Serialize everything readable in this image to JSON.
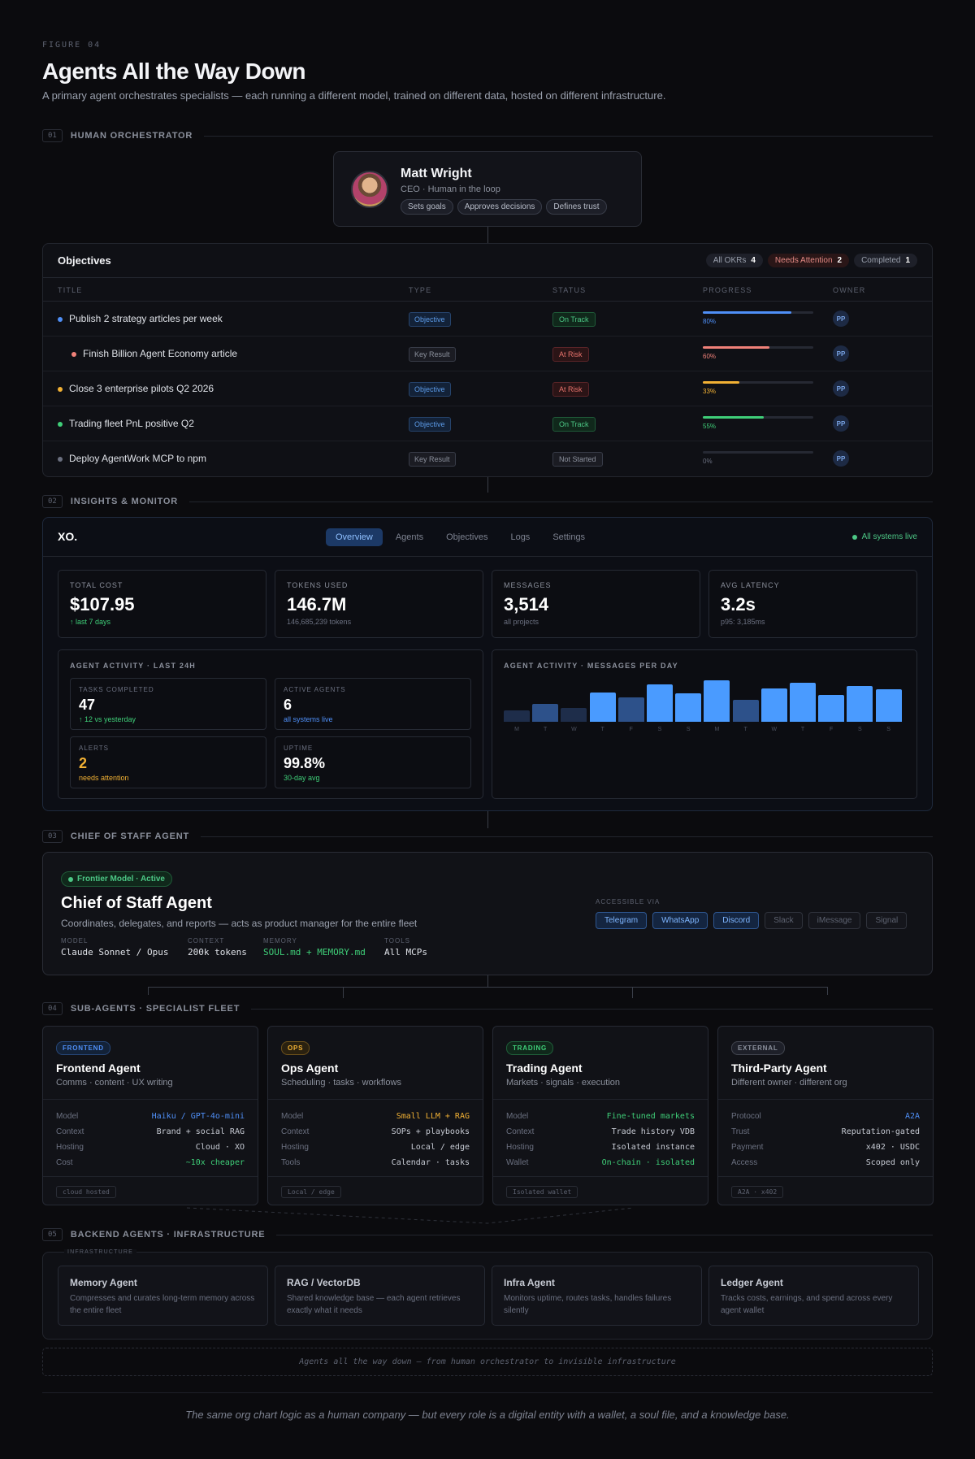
{
  "figure_label": "FIGURE 04",
  "title": "Agents All the Way Down",
  "subtitle": "A primary agent orchestrates specialists — each running a different model, trained on different data, hosted on different infrastructure.",
  "sections": {
    "s1": {
      "num": "01",
      "title": "HUMAN ORCHESTRATOR"
    },
    "s2": {
      "num": "02",
      "title": "INSIGHTS & MONITOR"
    },
    "s3": {
      "num": "03",
      "title": "CHIEF OF STAFF AGENT"
    },
    "s4": {
      "num": "04",
      "title": "SUB-AGENTS · SPECIALIST FLEET"
    },
    "s5": {
      "num": "05",
      "title": "BACKEND AGENTS · INFRASTRUCTURE"
    }
  },
  "ceo": {
    "name": "Matt Wright",
    "role": "CEO · Human in the loop",
    "tags": [
      "Sets goals",
      "Approves decisions",
      "Defines trust"
    ]
  },
  "objectives": {
    "title": "Objectives",
    "filters": [
      {
        "label": "All OKRs",
        "count": "4"
      },
      {
        "label": "Needs Attention",
        "count": "2"
      },
      {
        "label": "Completed",
        "count": "1"
      }
    ],
    "headers": {
      "title": "TITLE",
      "type": "TYPE",
      "status": "STATUS",
      "progress": "PROGRESS",
      "owner": "OWNER"
    },
    "rows": [
      {
        "title": "Publish 2 strategy articles per week",
        "type": "Objective",
        "status": "On Track",
        "progress": 0.8,
        "progress_label": "80%",
        "owner": "PP",
        "color": "#4f8ff7"
      },
      {
        "title": "Finish Billion Agent Economy article",
        "type": "Key Result",
        "status": "At Risk",
        "progress": 0.6,
        "progress_label": "60%",
        "owner": "PP",
        "color": "#f08179"
      },
      {
        "title": "Close 3 enterprise pilots Q2 2026",
        "type": "Objective",
        "status": "At Risk",
        "progress": 0.33,
        "progress_label": "33%",
        "owner": "PP",
        "color": "#f2b134"
      },
      {
        "title": "Trading fleet PnL positive Q2",
        "type": "Objective",
        "status": "On Track",
        "progress": 0.55,
        "progress_label": "55%",
        "owner": "PP",
        "color": "#3fce78"
      },
      {
        "title": "Deploy AgentWork MCP to npm",
        "type": "Key Result",
        "status": "Not Started",
        "progress": 0,
        "progress_label": "0%",
        "owner": "PP",
        "color": "#6b7080"
      }
    ]
  },
  "dashboard": {
    "logo": "XO.",
    "tabs": [
      "Overview",
      "Agents",
      "Objectives",
      "Logs",
      "Settings"
    ],
    "status": "All systems live",
    "kpis": [
      {
        "label": "TOTAL COST",
        "value": "$107.95",
        "sub": "↑ last 7 days",
        "sub_color": "#3fce78"
      },
      {
        "label": "TOKENS USED",
        "value": "146.7M",
        "sub": "146,685,239 tokens",
        "sub_color": "#6b7080"
      },
      {
        "label": "MESSAGES",
        "value": "3,514",
        "sub": "all projects",
        "sub_color": "#6b7080"
      },
      {
        "label": "AVG LATENCY",
        "value": "3.2s",
        "sub": "p95: 3,185ms",
        "sub_color": "#6b7080"
      }
    ],
    "activity": {
      "title": "AGENT ACTIVITY · LAST 24H",
      "cards": [
        {
          "label": "TASKS COMPLETED",
          "value": "47",
          "sub": "↑ 12 vs yesterday",
          "value_color": "#ffffff",
          "sub_color": "#3fce78"
        },
        {
          "label": "ACTIVE AGENTS",
          "value": "6",
          "sub": "all systems live",
          "value_color": "#ffffff",
          "sub_color": "#4f8ff7"
        },
        {
          "label": "ALERTS",
          "value": "2",
          "sub": "needs attention",
          "value_color": "#f2b134",
          "sub_color": "#f2b134"
        },
        {
          "label": "UPTIME",
          "value": "99.8%",
          "sub": "30-day avg",
          "value_color": "#ffffff",
          "sub_color": "#3fce78"
        }
      ]
    },
    "messages_chart": {
      "title": "AGENT ACTIVITY · MESSAGES PER DAY"
    }
  },
  "chart_data": {
    "type": "bar",
    "title": "AGENT ACTIVITY · MESSAGES PER DAY",
    "categories": [
      "M",
      "T",
      "W",
      "T",
      "F",
      "S",
      "S",
      "M",
      "T",
      "W",
      "T",
      "F",
      "S",
      "S"
    ],
    "values": [
      28,
      45,
      35,
      74,
      61,
      94,
      71,
      104,
      55,
      84,
      97,
      68,
      89,
      81
    ],
    "colors": [
      "#1e2d4a",
      "#2d518a",
      "#1e2d4a",
      "#4a9bff",
      "#2d518a",
      "#4a9bff",
      "#4a9bff",
      "#4a9bff",
      "#2d518a",
      "#4a9bff",
      "#4a9bff",
      "#4a9bff",
      "#4a9bff",
      "#4a9bff"
    ],
    "ylim": [
      0,
      110
    ],
    "grid": false
  },
  "chief": {
    "badge": "Frontier Model · Active",
    "title": "Chief of Staff Agent",
    "subtitle": "Coordinates, delegates, and reports — acts as product manager for the entire fleet",
    "meta": [
      {
        "label": "MODEL",
        "value": "Claude Sonnet / Opus",
        "color": "#dfe2e8"
      },
      {
        "label": "CONTEXT",
        "value": "200k tokens",
        "color": "#dfe2e8"
      },
      {
        "label": "MEMORY",
        "value": "SOUL.md + MEMORY.md",
        "color": "#3fce78"
      },
      {
        "label": "TOOLS",
        "value": "All MCPs",
        "color": "#dfe2e8"
      }
    ],
    "accessible_label": "ACCESSIBLE VIA",
    "channels": [
      {
        "label": "Telegram",
        "active": true
      },
      {
        "label": "WhatsApp",
        "active": true
      },
      {
        "label": "Discord",
        "active": true
      },
      {
        "label": "Slack",
        "active": false
      },
      {
        "label": "iMessage",
        "active": false
      },
      {
        "label": "Signal",
        "active": false
      }
    ]
  },
  "agents": [
    {
      "badge": "FRONTEND",
      "badge_color": "#4f8ff7",
      "badge_bg": "#132238",
      "name": "Frontend Agent",
      "sub": "Comms · content · UX writing",
      "rows": [
        {
          "k": "Model",
          "v": "Haiku / GPT-4o-mini",
          "color": "#4f8ff7"
        },
        {
          "k": "Context",
          "v": "Brand + social RAG",
          "color": "#c6cad3"
        },
        {
          "k": "Hosting",
          "v": "Cloud · XO",
          "color": "#c6cad3"
        },
        {
          "k": "Cost",
          "v": "~10x cheaper",
          "color": "#3fce78"
        }
      ],
      "footer": "cloud hosted"
    },
    {
      "badge": "OPS",
      "badge_color": "#f2b134",
      "badge_bg": "#2a2110",
      "name": "Ops Agent",
      "sub": "Scheduling · tasks · workflows",
      "rows": [
        {
          "k": "Model",
          "v": "Small LLM + RAG",
          "color": "#f2b134"
        },
        {
          "k": "Context",
          "v": "SOPs + playbooks",
          "color": "#c6cad3"
        },
        {
          "k": "Hosting",
          "v": "Local / edge",
          "color": "#c6cad3"
        },
        {
          "k": "Tools",
          "v": "Calendar · tasks",
          "color": "#c6cad3"
        }
      ],
      "footer": "Local / edge"
    },
    {
      "badge": "TRADING",
      "badge_color": "#3fce78",
      "badge_bg": "#10281b",
      "name": "Trading Agent",
      "sub": "Markets · signals · execution",
      "rows": [
        {
          "k": "Model",
          "v": "Fine-tuned markets",
          "color": "#3fce78"
        },
        {
          "k": "Context",
          "v": "Trade history VDB",
          "color": "#c6cad3"
        },
        {
          "k": "Hosting",
          "v": "Isolated instance",
          "color": "#c6cad3"
        },
        {
          "k": "Wallet",
          "v": "On-chain · isolated",
          "color": "#3fce78"
        }
      ],
      "footer": "Isolated wallet"
    },
    {
      "badge": "EXTERNAL",
      "badge_color": "#8b909c",
      "badge_bg": "#1e2029",
      "name": "Third-Party Agent",
      "sub": "Different owner · different org",
      "rows": [
        {
          "k": "Protocol",
          "v": "A2A",
          "color": "#4f8ff7"
        },
        {
          "k": "Trust",
          "v": "Reputation-gated",
          "color": "#c6cad3"
        },
        {
          "k": "Payment",
          "v": "x402 · USDC",
          "color": "#c6cad3"
        },
        {
          "k": "Access",
          "v": "Scoped only",
          "color": "#c6cad3"
        }
      ],
      "footer": "A2A · x402"
    }
  ],
  "infra": {
    "label": "INFRASTRUCTURE",
    "cards": [
      {
        "name": "Memory Agent",
        "desc": "Compresses and curates long-term memory across the entire fleet"
      },
      {
        "name": "RAG / VectorDB",
        "desc": "Shared knowledge base — each agent retrieves exactly what it needs"
      },
      {
        "name": "Infra Agent",
        "desc": "Monitors uptime, routes tasks, handles failures silently"
      },
      {
        "name": "Ledger Agent",
        "desc": "Tracks costs, earnings, and spend across every agent wallet"
      }
    ]
  },
  "tagline": "Agents all the way down — from human orchestrator to invisible infrastructure",
  "footnote": "The same org chart logic as a human company — but every role is a digital entity with a wallet, a soul file, and a knowledge base."
}
